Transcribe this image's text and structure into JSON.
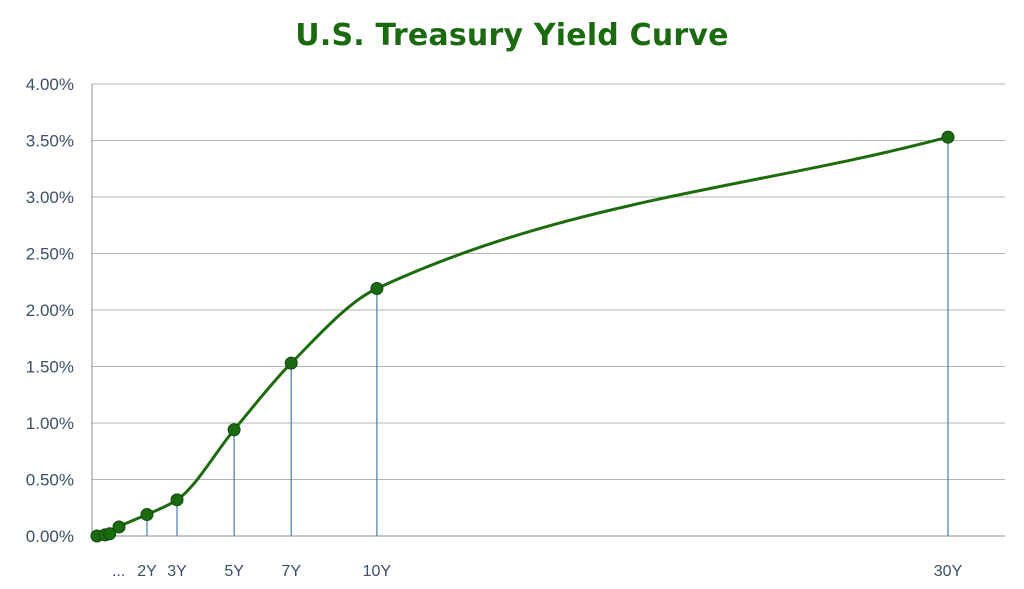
{
  "chart_data": {
    "type": "line",
    "title": "U.S. Treasury Yield Curve",
    "xlabel": "",
    "ylabel": "",
    "x_unit": "years",
    "xlim": [
      0,
      31.5
    ],
    "ylim": [
      0,
      4.0
    ],
    "y_ticks": [
      "0.00%",
      "0.50%",
      "1.00%",
      "1.50%",
      "2.00%",
      "2.50%",
      "3.00%",
      "3.50%",
      "4.00%"
    ],
    "x_tick_labels": [
      {
        "x": 0.5,
        "label": "..."
      },
      {
        "x": 2,
        "label": "2Y"
      },
      {
        "x": 3,
        "label": "3Y"
      },
      {
        "x": 5,
        "label": "5Y"
      },
      {
        "x": 7,
        "label": "7Y"
      },
      {
        "x": 10,
        "label": "10Y"
      },
      {
        "x": 30,
        "label": "30Y"
      }
    ],
    "drop_lines_at": [
      2,
      3,
      5,
      7,
      10,
      30
    ],
    "grid": "horizontal",
    "legend": "none",
    "series": [
      {
        "x": [
          0.083,
          0.25,
          0.5,
          1,
          2,
          3,
          5,
          7,
          10,
          30
        ],
        "y": [
          0.0,
          0.01,
          0.02,
          0.08,
          0.19,
          0.32,
          0.94,
          1.53,
          2.19,
          3.53
        ],
        "color": "#1e6b0e",
        "marker_color": "#1b6a10"
      }
    ],
    "colors": {
      "title": "#1b6a10",
      "gridline": "#b5b5b5",
      "axis": "#8c8c8c",
      "drop_line": "#4a79b0",
      "label": "#3b4f6b"
    }
  }
}
